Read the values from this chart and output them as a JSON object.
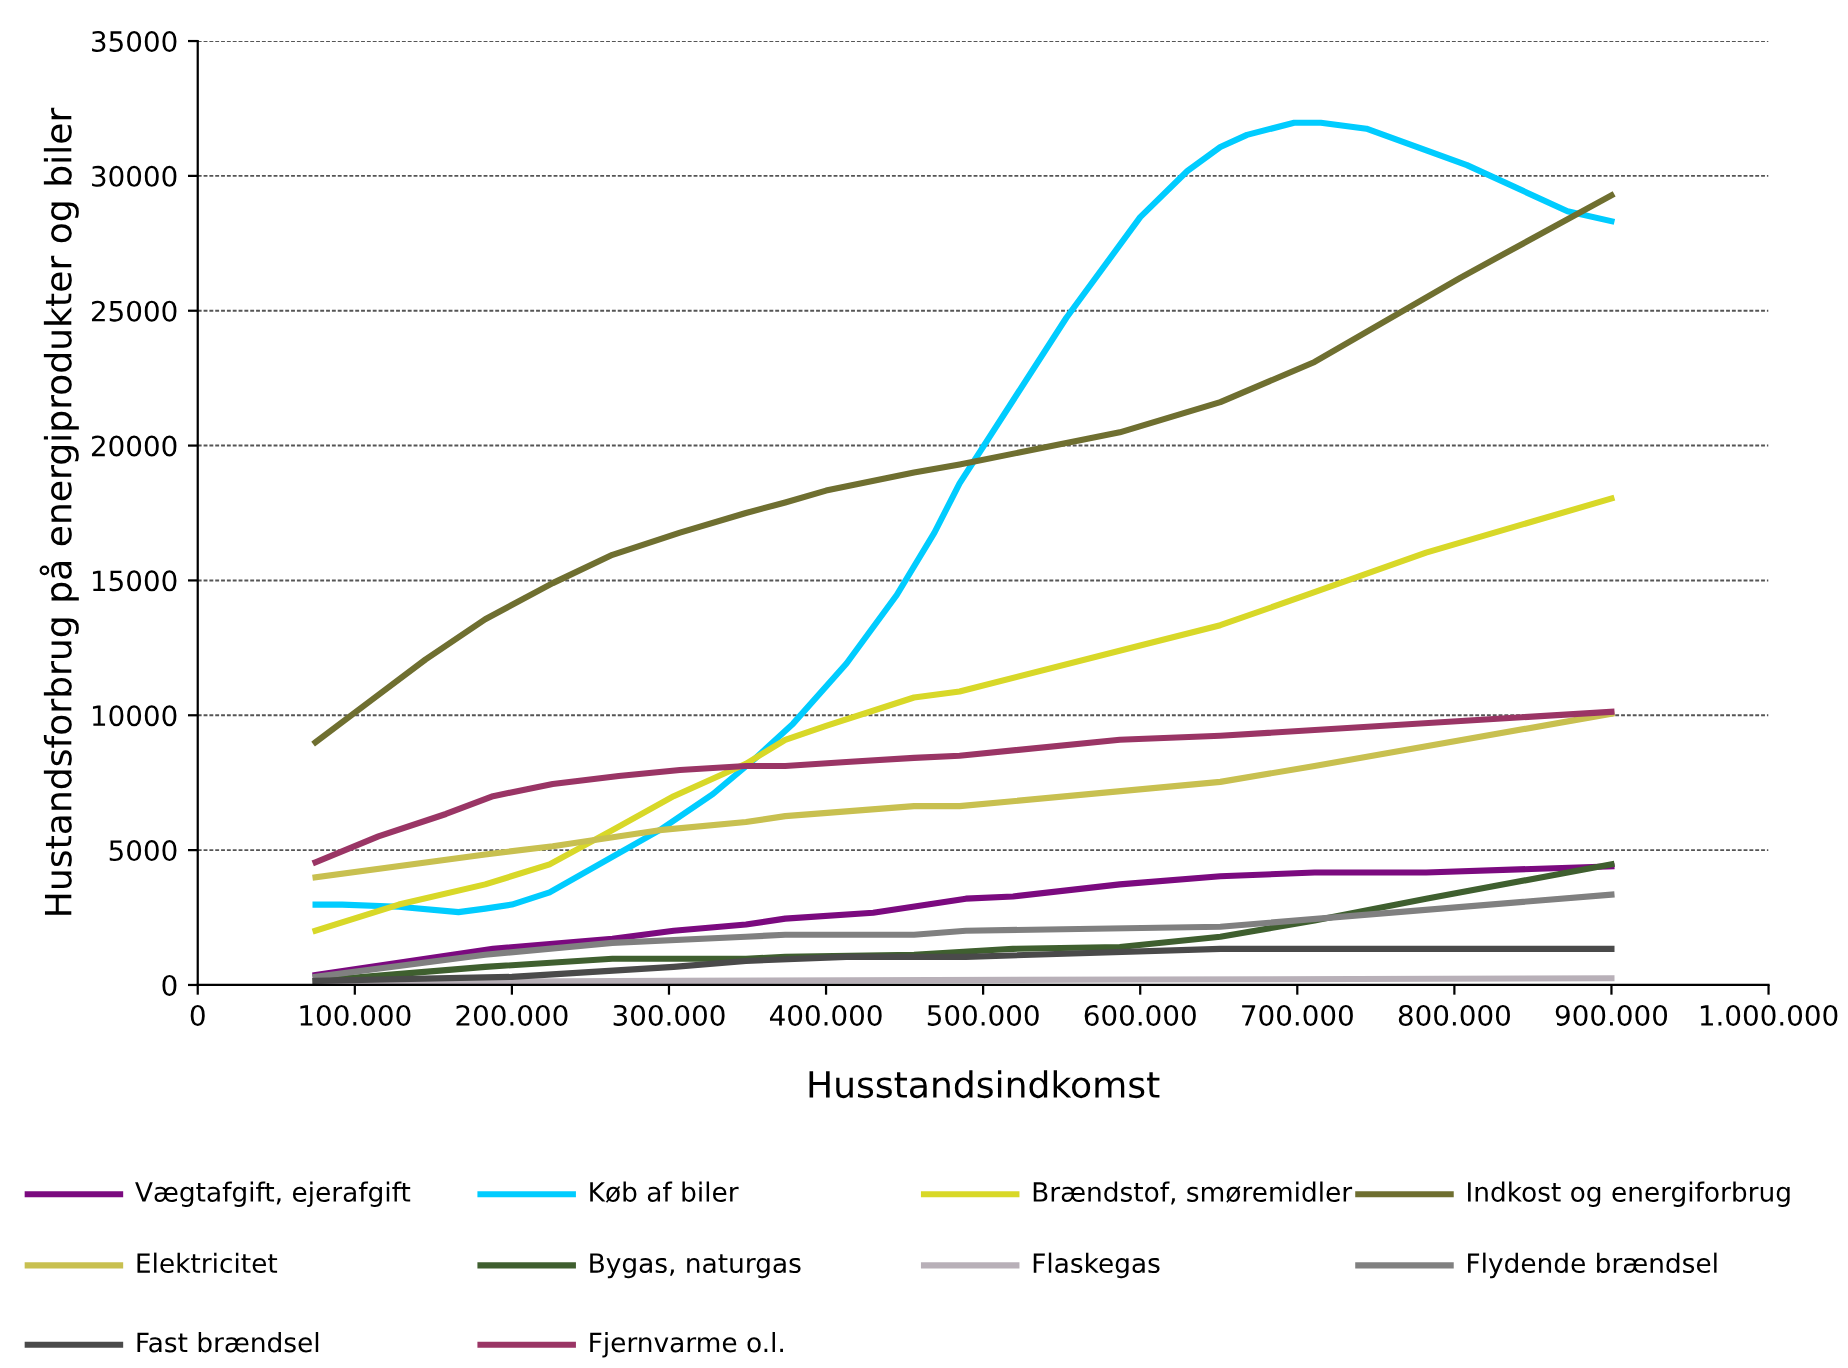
{
  "chart_data": {
    "type": "line",
    "xlabel": "Husstandsindkomst",
    "ylabel": "Hustandsforbrug på energiprodukter og biler",
    "xlim": [
      0,
      1000000
    ],
    "xticks": [
      0,
      {
        "value": 100000,
        "label": "100.000"
      },
      {
        "value": 200000,
        "label": "200.000"
      },
      {
        "value": 300000,
        "label": "300.000"
      },
      {
        "value": 400000,
        "label": "400.000"
      },
      {
        "value": 500000,
        "label": "500.000"
      },
      {
        "value": 600000,
        "label": "600.000"
      },
      {
        "value": 700000,
        "label": "700.000"
      },
      {
        "value": 800000,
        "label": "800.000"
      },
      {
        "value": 900000,
        "label": "900.000"
      },
      {
        "value": 1000000,
        "label": "1.000.000"
      }
    ],
    "ylim": [
      0,
      35000
    ],
    "yticks": [
      0,
      5000,
      10000,
      15000,
      20000,
      25000,
      30000,
      35000
    ],
    "grid": "y",
    "legend": "bottom",
    "marker": "none",
    "line_style": "solid",
    "series": [
      {
        "name": "Vægtafgift, ejerafgift",
        "color": "#7b0a7f",
        "x": [
          75000,
          188000,
          264000,
          303000,
          349000,
          374000,
          430000,
          489000,
          519000,
          587000,
          651000,
          711000,
          782000,
          900000
        ],
        "values": [
          370,
          1340,
          1710,
          2010,
          2240,
          2460,
          2680,
          3200,
          3280,
          3730,
          4030,
          4170,
          4170,
          4400
        ]
      },
      {
        "name": "Køb af biler",
        "color": "#00ccff",
        "x": [
          75000,
          92000,
          128000,
          166000,
          183000,
          200000,
          224000,
          260000,
          294000,
          328000,
          354000,
          379000,
          413000,
          445000,
          469000,
          485000,
          553000,
          600000,
          630000,
          651000,
          668000,
          698000,
          715000,
          744000,
          808000,
          872000,
          900000
        ],
        "values": [
          2980,
          2980,
          2900,
          2700,
          2830,
          2980,
          3430,
          4620,
          5740,
          7080,
          8350,
          9690,
          11920,
          14460,
          16770,
          18600,
          24740,
          28470,
          30180,
          31070,
          31520,
          31970,
          31970,
          31750,
          30400,
          28690,
          28320
        ]
      },
      {
        "name": "Brændstof, smøremidler",
        "color": "#d8d828",
        "x": [
          75000,
          128000,
          183000,
          224000,
          264000,
          303000,
          349000,
          374000,
          400000,
          456000,
          485000,
          600000,
          651000,
          706000,
          782000,
          900000
        ],
        "values": [
          2010,
          2980,
          3730,
          4470,
          5740,
          7000,
          8200,
          9090,
          9610,
          10660,
          10880,
          12590,
          13340,
          14460,
          16030,
          18040
        ]
      },
      {
        "name": "Indkost og energiforbrug",
        "color": "#6f6f30",
        "x": [
          75000,
          111000,
          145000,
          183000,
          226000,
          264000,
          307000,
          349000,
          374000,
          400000,
          456000,
          485000,
          587000,
          651000,
          711000,
          804000,
          900000
        ],
        "values": [
          9000,
          10580,
          12070,
          13560,
          14900,
          15950,
          16770,
          17500,
          17890,
          18330,
          19000,
          19300,
          20490,
          21610,
          23100,
          26230,
          29280
        ]
      },
      {
        "name": "Elektricitet",
        "color": "#c8c050",
        "x": [
          75000,
          183000,
          226000,
          294000,
          349000,
          374000,
          456000,
          485000,
          651000,
          711000,
          900000
        ],
        "values": [
          3990,
          4840,
          5140,
          5740,
          6040,
          6260,
          6630,
          6630,
          7530,
          8120,
          10060
        ]
      },
      {
        "name": "Bygas, naturgas",
        "color": "#3f5f2f",
        "x": [
          75000,
          183000,
          264000,
          349000,
          374000,
          456000,
          519000,
          587000,
          651000,
          711000,
          782000,
          900000
        ],
        "values": [
          150,
          670,
          970,
          970,
          1040,
          1120,
          1340,
          1410,
          1790,
          2390,
          3200,
          4470
        ]
      },
      {
        "name": "Flaskegas",
        "color": "#b8b0b8",
        "x": [
          75000,
          300000,
          600000,
          900000
        ],
        "values": [
          100,
          150,
          200,
          250
        ]
      },
      {
        "name": "Flydende brændsel",
        "color": "#808080",
        "x": [
          75000,
          183000,
          264000,
          349000,
          374000,
          456000,
          489000,
          651000,
          900000
        ],
        "values": [
          300,
          1120,
          1560,
          1790,
          1860,
          1860,
          2010,
          2160,
          3350
        ]
      },
      {
        "name": "Fast brændsel",
        "color": "#4a4a4a",
        "x": [
          75000,
          200000,
          303000,
          349000,
          413000,
          489000,
          651000,
          900000
        ],
        "values": [
          150,
          300,
          670,
          890,
          1040,
          1040,
          1340,
          1340
        ]
      },
      {
        "name": "Fjernvarme o.l.",
        "color": "#9a3565",
        "x": [
          75000,
          115000,
          158000,
          188000,
          226000,
          268000,
          307000,
          349000,
          374000,
          413000,
          456000,
          485000,
          587000,
          651000,
          900000
        ],
        "values": [
          4550,
          5510,
          6340,
          7000,
          7450,
          7750,
          7970,
          8120,
          8120,
          8270,
          8420,
          8500,
          9090,
          9240,
          10130
        ]
      }
    ]
  }
}
